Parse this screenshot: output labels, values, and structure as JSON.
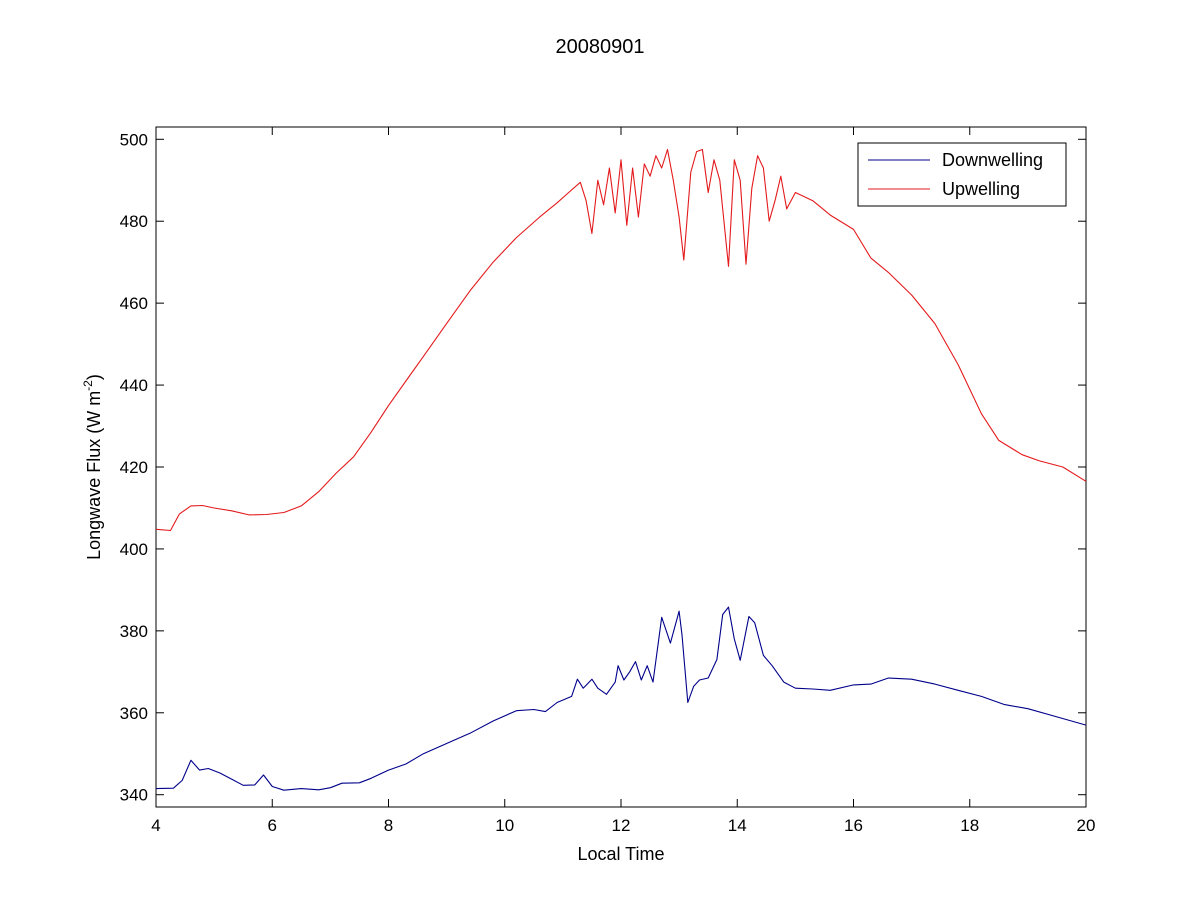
{
  "chart_data": {
    "type": "line",
    "title": "20080901",
    "xlabel": "Local Time",
    "ylabel": "Longwave Flux (W m",
    "ylabel_sup": "-2",
    "ylabel_close": ")",
    "xlim": [
      4,
      20
    ],
    "ylim": [
      337,
      503
    ],
    "xticks": [
      4,
      6,
      8,
      10,
      12,
      14,
      16,
      18,
      20
    ],
    "yticks": [
      340,
      360,
      380,
      400,
      420,
      440,
      460,
      480,
      500
    ],
    "grid": false,
    "legend_position": "top-right",
    "series": [
      {
        "name": "Downwelling",
        "color": "#00008b",
        "points": [
          [
            4.0,
            341.5
          ],
          [
            4.3,
            341.6
          ],
          [
            4.45,
            343.5
          ],
          [
            4.6,
            348.4
          ],
          [
            4.75,
            346.0
          ],
          [
            4.9,
            346.4
          ],
          [
            5.1,
            345.3
          ],
          [
            5.3,
            343.8
          ],
          [
            5.5,
            342.3
          ],
          [
            5.7,
            342.4
          ],
          [
            5.85,
            344.8
          ],
          [
            6.0,
            342.0
          ],
          [
            6.2,
            341.1
          ],
          [
            6.5,
            341.5
          ],
          [
            6.8,
            341.2
          ],
          [
            7.0,
            341.7
          ],
          [
            7.2,
            342.8
          ],
          [
            7.5,
            342.9
          ],
          [
            7.7,
            344.0
          ],
          [
            8.0,
            346.0
          ],
          [
            8.3,
            347.5
          ],
          [
            8.6,
            350.0
          ],
          [
            9.0,
            352.5
          ],
          [
            9.4,
            355.0
          ],
          [
            9.8,
            358.0
          ],
          [
            10.2,
            360.5
          ],
          [
            10.5,
            360.8
          ],
          [
            10.7,
            360.3
          ],
          [
            10.9,
            362.5
          ],
          [
            11.15,
            364.0
          ],
          [
            11.25,
            368.2
          ],
          [
            11.35,
            366.0
          ],
          [
            11.5,
            368.2
          ],
          [
            11.6,
            366.0
          ],
          [
            11.75,
            364.5
          ],
          [
            11.9,
            367.5
          ],
          [
            11.95,
            371.5
          ],
          [
            12.05,
            368.0
          ],
          [
            12.15,
            370.0
          ],
          [
            12.25,
            372.5
          ],
          [
            12.35,
            368.0
          ],
          [
            12.45,
            371.5
          ],
          [
            12.55,
            367.5
          ],
          [
            12.7,
            383.3
          ],
          [
            12.85,
            377.0
          ],
          [
            13.0,
            384.8
          ],
          [
            13.05,
            379.0
          ],
          [
            13.15,
            362.5
          ],
          [
            13.25,
            366.5
          ],
          [
            13.35,
            368.0
          ],
          [
            13.5,
            368.5
          ],
          [
            13.65,
            373.0
          ],
          [
            13.75,
            384.0
          ],
          [
            13.85,
            385.8
          ],
          [
            13.95,
            378.0
          ],
          [
            14.05,
            372.8
          ],
          [
            14.2,
            383.5
          ],
          [
            14.3,
            382.0
          ],
          [
            14.45,
            374.0
          ],
          [
            14.6,
            371.5
          ],
          [
            14.8,
            367.5
          ],
          [
            15.0,
            366.0
          ],
          [
            15.3,
            365.8
          ],
          [
            15.6,
            365.5
          ],
          [
            16.0,
            366.8
          ],
          [
            16.3,
            367.0
          ],
          [
            16.6,
            368.5
          ],
          [
            17.0,
            368.2
          ],
          [
            17.4,
            367.0
          ],
          [
            17.8,
            365.5
          ],
          [
            18.2,
            364.0
          ],
          [
            18.6,
            362.0
          ],
          [
            19.0,
            361.0
          ],
          [
            19.5,
            359.0
          ],
          [
            20.0,
            357.0
          ]
        ]
      },
      {
        "name": "Upwelling",
        "color": "#e41a1c",
        "points": [
          [
            4.0,
            404.8
          ],
          [
            4.25,
            404.5
          ],
          [
            4.4,
            408.5
          ],
          [
            4.6,
            410.5
          ],
          [
            4.8,
            410.6
          ],
          [
            5.0,
            410.0
          ],
          [
            5.3,
            409.3
          ],
          [
            5.6,
            408.3
          ],
          [
            5.9,
            408.4
          ],
          [
            6.2,
            408.9
          ],
          [
            6.5,
            410.5
          ],
          [
            6.8,
            414.0
          ],
          [
            7.1,
            418.5
          ],
          [
            7.4,
            422.5
          ],
          [
            7.7,
            428.5
          ],
          [
            8.0,
            435.0
          ],
          [
            8.3,
            441.0
          ],
          [
            8.6,
            447.0
          ],
          [
            9.0,
            455.0
          ],
          [
            9.4,
            463.0
          ],
          [
            9.8,
            470.0
          ],
          [
            10.2,
            476.0
          ],
          [
            10.6,
            481.0
          ],
          [
            10.9,
            484.5
          ],
          [
            11.1,
            487.0
          ],
          [
            11.3,
            489.5
          ],
          [
            11.4,
            485.0
          ],
          [
            11.5,
            477.0
          ],
          [
            11.6,
            490.0
          ],
          [
            11.7,
            484.0
          ],
          [
            11.8,
            493.0
          ],
          [
            11.9,
            482.0
          ],
          [
            12.0,
            495.0
          ],
          [
            12.1,
            479.0
          ],
          [
            12.2,
            493.0
          ],
          [
            12.3,
            481.0
          ],
          [
            12.4,
            494.0
          ],
          [
            12.5,
            491.0
          ],
          [
            12.6,
            496.0
          ],
          [
            12.7,
            493.0
          ],
          [
            12.8,
            497.5
          ],
          [
            12.9,
            490.0
          ],
          [
            13.0,
            481.0
          ],
          [
            13.08,
            470.5
          ],
          [
            13.2,
            492.0
          ],
          [
            13.3,
            497.0
          ],
          [
            13.4,
            497.5
          ],
          [
            13.5,
            487.0
          ],
          [
            13.6,
            495.0
          ],
          [
            13.7,
            490.0
          ],
          [
            13.85,
            469.0
          ],
          [
            13.95,
            495.0
          ],
          [
            14.05,
            490.0
          ],
          [
            14.15,
            469.5
          ],
          [
            14.25,
            488.0
          ],
          [
            14.35,
            496.0
          ],
          [
            14.45,
            493.0
          ],
          [
            14.55,
            480.0
          ],
          [
            14.65,
            485.0
          ],
          [
            14.75,
            491.0
          ],
          [
            14.85,
            483.0
          ],
          [
            15.0,
            487.0
          ],
          [
            15.3,
            485.0
          ],
          [
            15.6,
            481.5
          ],
          [
            16.0,
            478.0
          ],
          [
            16.3,
            471.0
          ],
          [
            16.6,
            467.5
          ],
          [
            17.0,
            462.0
          ],
          [
            17.4,
            455.0
          ],
          [
            17.8,
            445.0
          ],
          [
            18.2,
            433.0
          ],
          [
            18.5,
            426.5
          ],
          [
            18.9,
            423.0
          ],
          [
            19.2,
            421.5
          ],
          [
            19.6,
            420.0
          ],
          [
            20.0,
            416.5
          ]
        ]
      }
    ]
  }
}
